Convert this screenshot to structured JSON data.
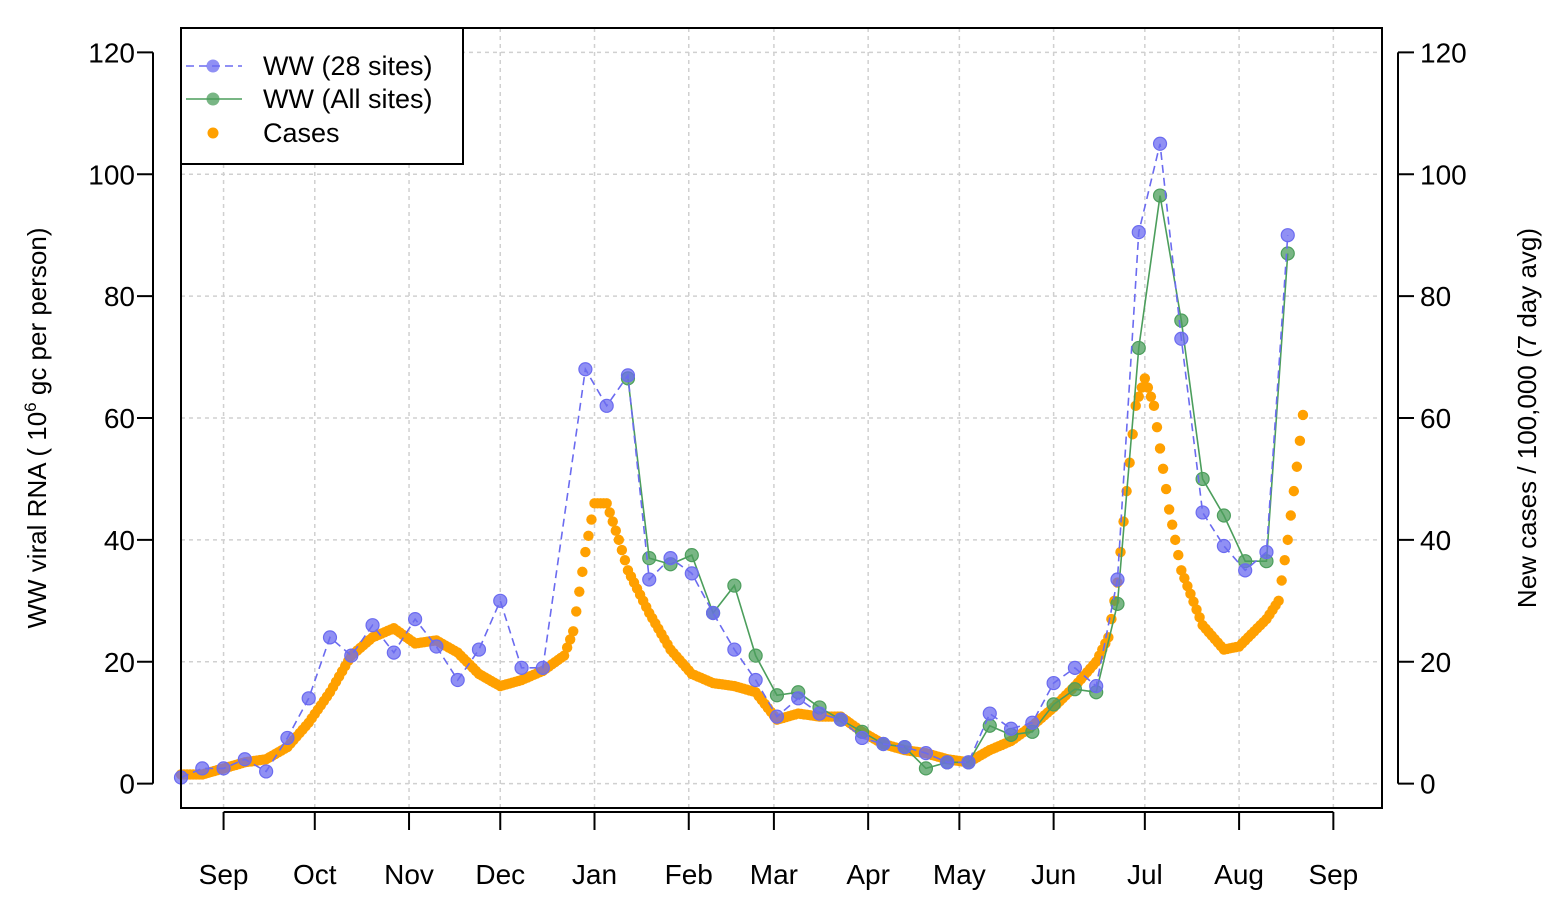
{
  "chart_data": {
    "type": "line",
    "title": "",
    "xlabel": "",
    "ylabel_left": "WW viral RNA ( 10^6 gc per person)",
    "ylabel_left_parts": {
      "prefix": "WW viral RNA ( 10",
      "sup": "6",
      "suffix": " gc per person)"
    },
    "ylabel_right": "New cases / 100,000 (7 day avg)",
    "ylim": [
      -4,
      124
    ],
    "yticks": [
      0,
      20,
      40,
      60,
      80,
      100,
      120
    ],
    "xlim_days": [
      0,
      395
    ],
    "x_tick_labels": [
      "Sep",
      "Oct",
      "Nov",
      "Dec",
      "Jan",
      "Feb",
      "Mar",
      "Apr",
      "May",
      "Jun",
      "Jul",
      "Aug",
      "Sep"
    ],
    "x_ticks_day": [
      14,
      44,
      75,
      105,
      136,
      167,
      195,
      226,
      256,
      287,
      317,
      348,
      379
    ],
    "grid": true,
    "legend_position": "top-left",
    "colors": {
      "ww28": "#6b6bf0",
      "wwall": "#4c9e5c",
      "cases": "#ffa000"
    },
    "legend": [
      {
        "label": "WW (28 sites)",
        "key": "ww28"
      },
      {
        "label": "WW (All sites)",
        "key": "wwall"
      },
      {
        "label": "Cases",
        "key": "cases"
      }
    ],
    "series": [
      {
        "name": "WW (28 sites)",
        "key": "ww28",
        "x": [
          0,
          7,
          14,
          21,
          28,
          35,
          42,
          49,
          56,
          63,
          70,
          77,
          84,
          91,
          98,
          105,
          112,
          119,
          133,
          140,
          147,
          154,
          161,
          168,
          175,
          182,
          189,
          196,
          203,
          210,
          217,
          224,
          231,
          238,
          245,
          252,
          259,
          266,
          273,
          280,
          287,
          294,
          301,
          308,
          315,
          322,
          329,
          336,
          343,
          350,
          357,
          364
        ],
        "values": [
          1,
          2.5,
          2.5,
          4,
          2,
          7.5,
          14,
          24,
          21,
          26,
          21.5,
          27,
          22.5,
          17,
          22,
          30,
          19,
          19,
          68,
          62,
          67,
          33.5,
          37,
          34.5,
          28,
          22,
          17,
          11,
          14,
          11.5,
          10.5,
          7.5,
          6.5,
          6,
          5,
          3.5,
          3.5,
          11.5,
          9,
          10,
          16.5,
          19,
          16,
          33.5,
          90.5,
          105,
          73,
          44.5,
          39,
          35,
          38,
          90
        ]
      },
      {
        "name": "WW (All sites)",
        "key": "wwall",
        "x": [
          147,
          154,
          161,
          168,
          175,
          182,
          189,
          196,
          203,
          210,
          217,
          224,
          231,
          238,
          245,
          252,
          259,
          266,
          273,
          280,
          287,
          294,
          301,
          308,
          315,
          322,
          329,
          336,
          343,
          350,
          357,
          364
        ],
        "values": [
          66.5,
          37,
          36,
          37.5,
          28,
          32.5,
          21,
          14.5,
          15,
          12.5,
          10.5,
          8.5,
          6.5,
          6,
          2.5,
          3.5,
          3.5,
          9.5,
          8,
          8.5,
          13,
          15.5,
          15,
          29.5,
          71.5,
          96.5,
          76,
          50,
          44,
          36.5,
          36.5,
          87
        ]
      },
      {
        "name": "Cases",
        "key": "cases",
        "x": [
          0,
          7,
          14,
          21,
          28,
          35,
          42,
          49,
          56,
          63,
          70,
          77,
          84,
          91,
          98,
          105,
          112,
          119,
          126,
          129,
          133,
          136,
          140,
          144,
          147,
          154,
          161,
          168,
          175,
          182,
          189,
          196,
          203,
          210,
          217,
          224,
          231,
          238,
          245,
          252,
          259,
          266,
          273,
          280,
          287,
          294,
          301,
          305,
          308,
          311,
          314,
          317,
          320,
          322,
          325,
          329,
          336,
          343,
          348,
          350,
          357,
          361,
          364,
          367,
          369
        ],
        "values": [
          1.5,
          1.5,
          2.5,
          3.5,
          4,
          6,
          10,
          15,
          21,
          24,
          25.5,
          23,
          23.5,
          21.5,
          18,
          16,
          17,
          18.5,
          21,
          25,
          38,
          46,
          46,
          40,
          35,
          28,
          22,
          18,
          16.5,
          16,
          15,
          10.5,
          11.5,
          11,
          11,
          8.5,
          6.5,
          5.5,
          5,
          4,
          3.5,
          5.5,
          7,
          9.5,
          12.5,
          16,
          20,
          24,
          33,
          48,
          62,
          66.5,
          62,
          55,
          45,
          35,
          26,
          22,
          22.5,
          23.5,
          27,
          30,
          40,
          52,
          60.5
        ]
      }
    ]
  }
}
